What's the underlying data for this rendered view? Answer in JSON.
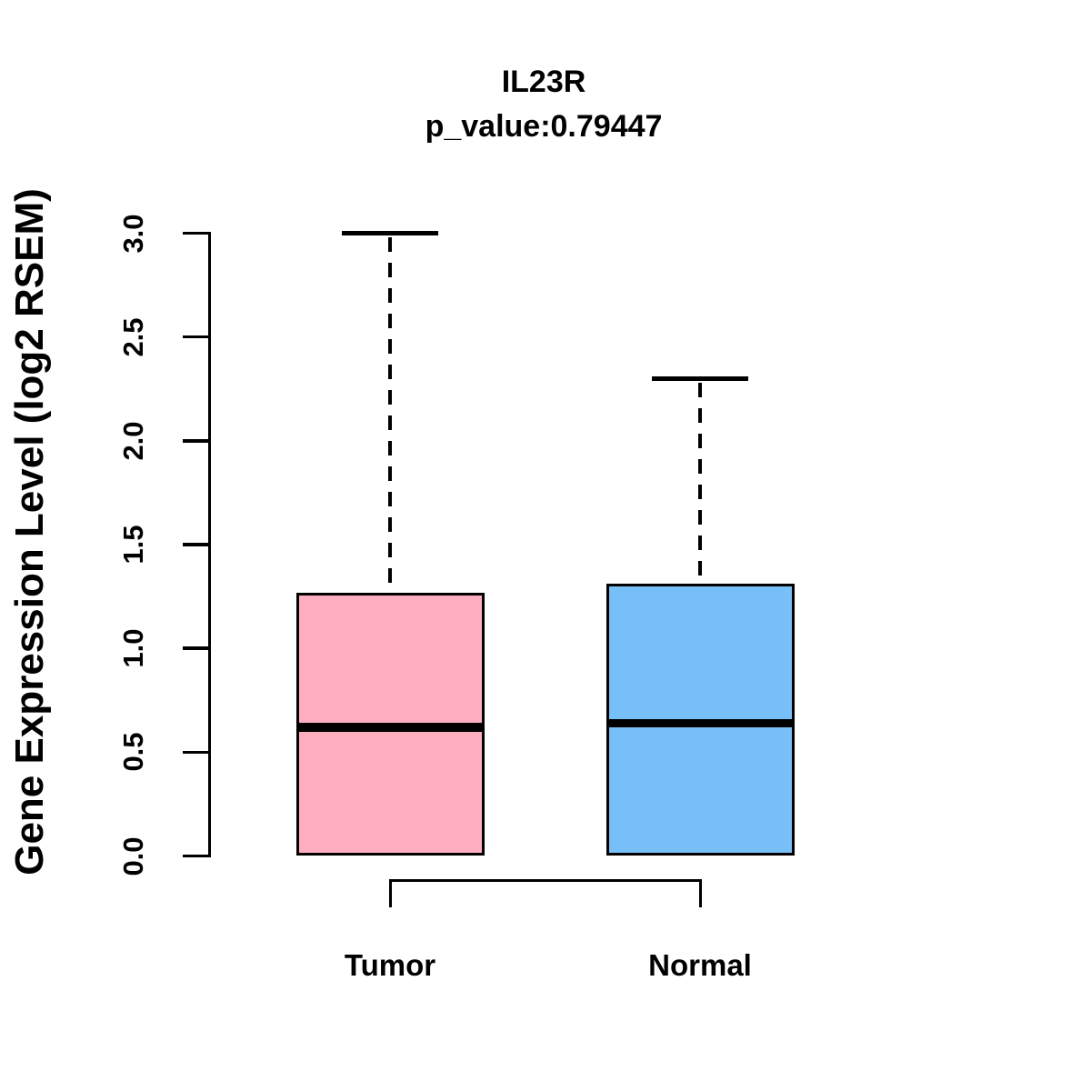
{
  "chart_data": {
    "type": "boxplot",
    "title": "IL23R",
    "subtitle": "p_value:0.79447",
    "ylabel": "Gene Expression Level (log2 RSEM)",
    "xlabel": "",
    "ylim": [
      0.0,
      3.0
    ],
    "yticks": [
      "0.0",
      "0.5",
      "1.0",
      "1.5",
      "2.0",
      "2.5",
      "3.0"
    ],
    "grid": false,
    "legend": false,
    "whisker_style": "dashed",
    "line_color": "#000000",
    "background_color": "#FFFFFF",
    "categories": [
      "Tumor",
      "Normal"
    ],
    "series": [
      {
        "name": "Tumor",
        "fill_color": "#FFAEC0",
        "lower_whisker": 0.0,
        "q1": 0.0,
        "median": 0.62,
        "q3": 1.27,
        "upper_whisker": 3.0
      },
      {
        "name": "Normal",
        "fill_color": "#77BFF7",
        "lower_whisker": 0.0,
        "q1": 0.0,
        "median": 0.64,
        "q3": 1.31,
        "upper_whisker": 2.3
      }
    ],
    "comparison_bracket": {
      "between": [
        "Tumor",
        "Normal"
      ]
    }
  }
}
